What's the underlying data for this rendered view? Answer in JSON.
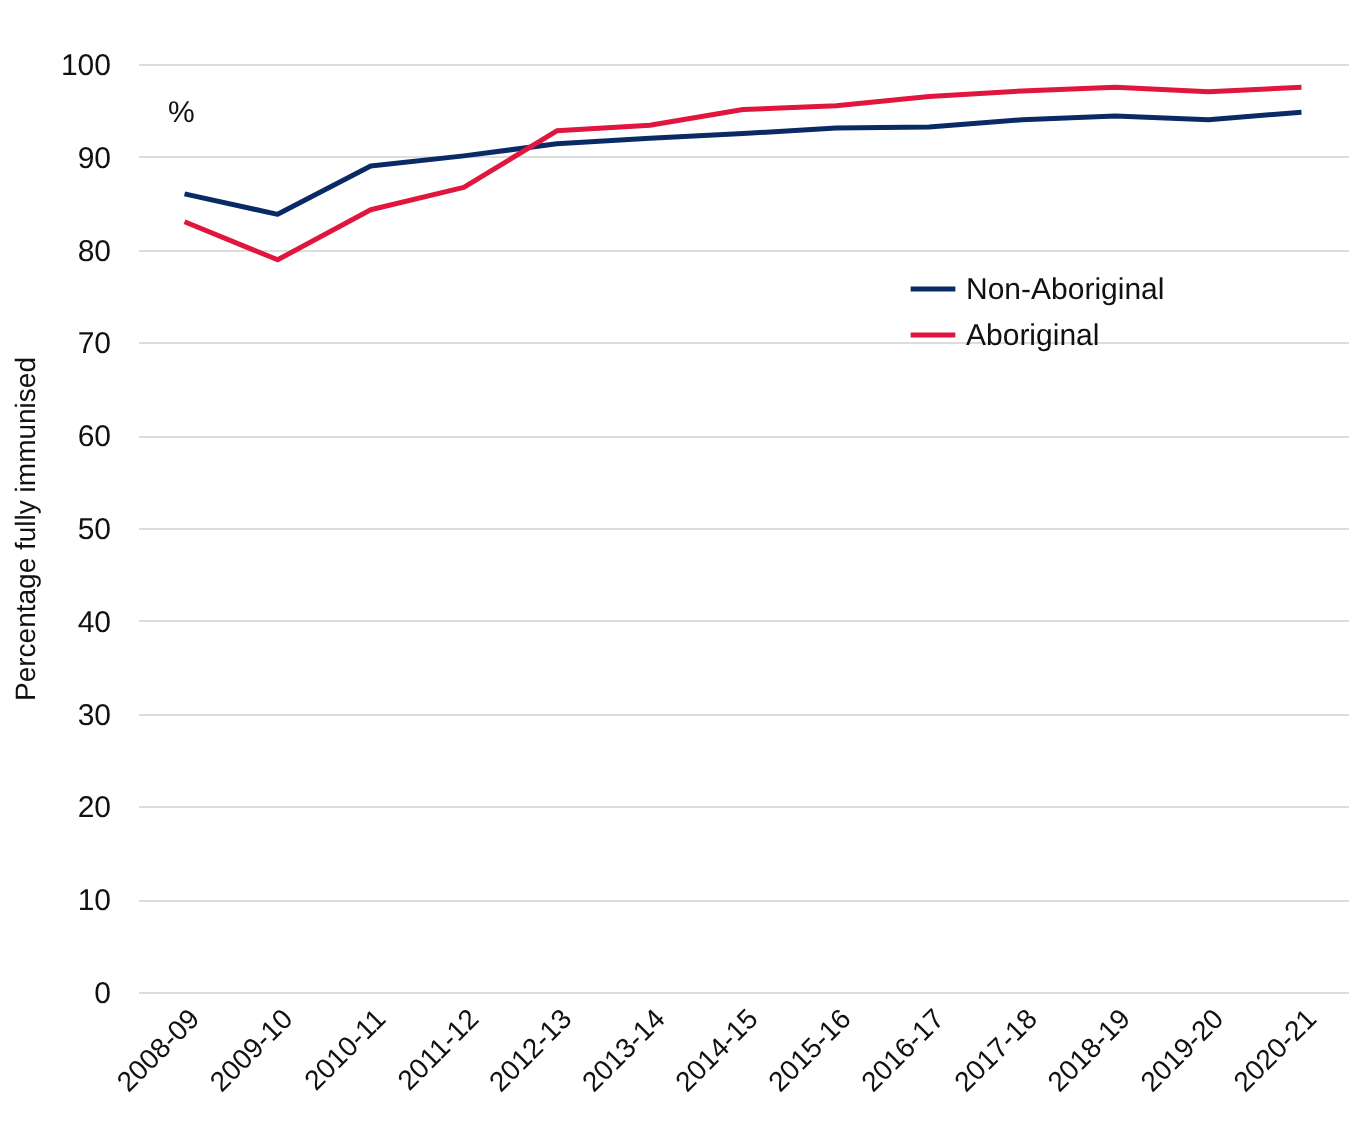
{
  "chart_data": {
    "type": "line",
    "ylabel": "Percentage fully immunised",
    "annotations": [
      "%"
    ],
    "categories": [
      "2008-09",
      "2009-10",
      "2010-11",
      "2011-12",
      "2012-13",
      "2013-14",
      "2014-15",
      "2015-16",
      "2016-17",
      "2017-18",
      "2018-19",
      "2019-20",
      "2020-21"
    ],
    "series": [
      {
        "name": "Non-Aboriginal",
        "color": "#0a2a66",
        "values": [
          86.0,
          83.8,
          89.0,
          90.1,
          91.4,
          92.0,
          92.5,
          93.1,
          93.2,
          94.0,
          94.4,
          94.0,
          94.8
        ]
      },
      {
        "name": "Aboriginal",
        "color": "#e0163f",
        "values": [
          83.0,
          78.9,
          84.3,
          86.7,
          92.8,
          93.4,
          95.1,
          95.5,
          96.5,
          97.1,
          97.5,
          97.0,
          97.5
        ]
      }
    ],
    "ylim": [
      0,
      100
    ],
    "yticks": [
      0,
      10,
      20,
      30,
      40,
      50,
      60,
      70,
      80,
      90,
      100
    ],
    "grid": "y",
    "legend": "top right",
    "marker": "none",
    "line_style": "solid"
  }
}
